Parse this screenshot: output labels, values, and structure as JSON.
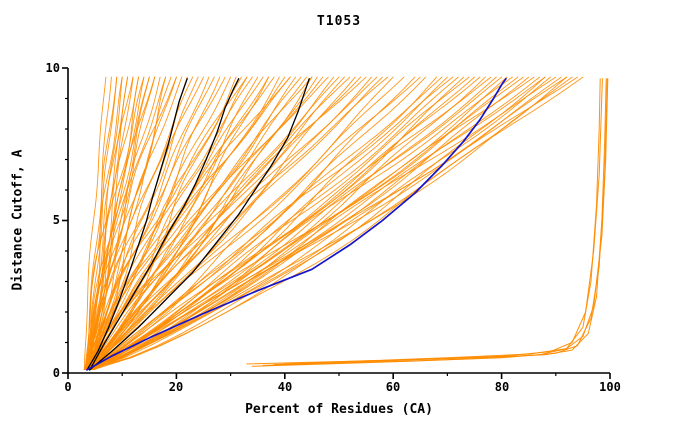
{
  "chart_data": {
    "type": "line",
    "title": "T1053",
    "xlabel": "Percent of Residues (CA)",
    "ylabel": "Distance Cutoff, A",
    "xlim": [
      0,
      100
    ],
    "ylim": [
      0,
      10
    ],
    "xticks": [
      0,
      20,
      40,
      60,
      80,
      100
    ],
    "yticks": [
      0,
      5,
      10
    ],
    "grid": false,
    "legend": "none",
    "colors": {
      "ensemble": "#FF8C00",
      "highlight": "#1414CC",
      "black": "#000000",
      "axis": "#000000",
      "background": "#FFFFFF"
    },
    "orange_ensemble": {
      "origin_x_min": 3,
      "origin_x_max": 5,
      "y_start": 0.12,
      "y_top": 9.7,
      "params": [
        [
          7,
          1.3,
          0.3,
          0.0
        ],
        [
          8,
          1.1,
          0.4,
          1.0
        ],
        [
          9,
          1.4,
          0.5,
          2.0
        ],
        [
          10,
          1.0,
          0.5,
          3.0
        ],
        [
          10,
          1.5,
          0.6,
          4.0
        ],
        [
          11,
          1.2,
          0.5,
          5.0
        ],
        [
          12,
          1.35,
          0.7,
          0.5
        ],
        [
          12,
          0.95,
          0.5,
          1.5
        ],
        [
          13,
          1.25,
          0.8,
          2.5
        ],
        [
          14,
          1.1,
          0.6,
          3.5
        ],
        [
          14,
          1.5,
          0.9,
          4.5
        ],
        [
          15,
          1.2,
          0.7,
          5.5
        ],
        [
          16,
          1.05,
          0.8,
          0.2
        ],
        [
          16,
          1.4,
          0.6,
          1.2
        ],
        [
          17,
          1.15,
          0.9,
          2.2
        ],
        [
          18,
          1.3,
          0.7,
          3.2
        ],
        [
          18,
          0.9,
          0.8,
          4.2
        ],
        [
          19,
          1.2,
          1.0,
          5.2
        ],
        [
          20,
          1.1,
          0.8,
          0.8
        ],
        [
          20,
          1.45,
          0.9,
          1.8
        ],
        [
          21,
          1.25,
          0.7,
          2.8
        ],
        [
          22,
          1.0,
          1.0,
          3.8
        ],
        [
          23,
          1.3,
          0.8,
          4.8
        ],
        [
          24,
          1.15,
          0.9,
          5.8
        ],
        [
          25,
          1.2,
          1.0,
          0.4
        ],
        [
          26,
          1.05,
          0.8,
          1.4
        ],
        [
          9,
          1.2,
          0.4,
          2.4
        ],
        [
          11,
          1.4,
          0.5,
          3.4
        ],
        [
          13,
          1.0,
          0.6,
          4.4
        ],
        [
          15,
          1.35,
          0.7,
          5.4
        ],
        [
          27,
          1.1,
          1.0,
          0.0
        ],
        [
          28,
          0.95,
          1.1,
          0.7
        ],
        [
          29,
          1.2,
          0.9,
          1.4
        ],
        [
          30,
          1.05,
          1.0,
          2.1
        ],
        [
          31,
          0.9,
          1.2,
          2.8
        ],
        [
          32,
          1.15,
          1.0,
          3.5
        ],
        [
          33,
          1.0,
          1.1,
          4.2
        ],
        [
          34,
          1.2,
          0.9,
          4.9
        ],
        [
          35,
          0.95,
          1.2,
          5.6
        ],
        [
          36,
          1.1,
          1.0,
          0.3
        ],
        [
          37,
          1.0,
          1.1,
          1.0
        ],
        [
          38,
          1.15,
          0.9,
          1.7
        ],
        [
          39,
          0.9,
          1.2,
          2.4
        ],
        [
          40,
          1.05,
          1.0,
          3.1
        ],
        [
          41,
          1.2,
          1.1,
          3.8
        ],
        [
          42,
          0.95,
          1.0,
          4.5
        ],
        [
          43,
          1.1,
          1.2,
          5.2
        ],
        [
          44,
          1.0,
          0.9,
          5.9
        ],
        [
          45,
          1.15,
          1.0,
          0.6
        ],
        [
          46,
          0.9,
          1.1,
          1.3
        ],
        [
          47,
          1.05,
          1.2,
          2.0
        ],
        [
          48,
          1.2,
          1.0,
          2.7
        ],
        [
          49,
          0.95,
          1.1,
          3.4
        ],
        [
          50,
          1.1,
          0.9,
          4.1
        ],
        [
          51,
          1.0,
          1.2,
          4.8
        ],
        [
          52,
          1.15,
          1.0,
          5.5
        ],
        [
          53,
          0.9,
          1.1,
          0.2
        ],
        [
          54,
          1.05,
          1.0,
          0.9
        ],
        [
          55,
          1.2,
          1.2,
          1.6
        ],
        [
          56,
          0.95,
          1.0,
          2.3
        ],
        [
          57,
          1.1,
          1.1,
          3.0
        ],
        [
          58,
          1.0,
          1.0,
          3.7
        ],
        [
          59,
          1.15,
          1.2,
          4.4
        ],
        [
          60,
          0.9,
          1.0,
          5.1
        ],
        [
          33,
          1.25,
          1.0,
          0.5
        ],
        [
          37,
          0.85,
          1.2,
          1.2
        ],
        [
          41,
          1.3,
          0.9,
          1.9
        ],
        [
          45,
          0.85,
          1.1,
          2.6
        ],
        [
          62,
          0.95,
          1.2,
          0.0
        ],
        [
          64,
          0.85,
          1.3,
          0.6
        ],
        [
          65,
          1.0,
          1.1,
          1.2
        ],
        [
          66,
          0.9,
          1.2,
          1.8
        ],
        [
          68,
          0.8,
          1.3,
          2.4
        ],
        [
          69,
          0.95,
          1.1,
          3.0
        ],
        [
          70,
          0.85,
          1.2,
          3.6
        ],
        [
          71,
          1.0,
          1.3,
          4.2
        ],
        [
          72,
          0.9,
          1.1,
          4.8
        ],
        [
          73,
          0.8,
          1.2,
          5.4
        ],
        [
          74,
          0.95,
          1.3,
          6.0
        ],
        [
          75,
          0.85,
          1.1,
          0.3
        ],
        [
          76,
          0.9,
          1.2,
          0.9
        ],
        [
          77,
          0.8,
          1.3,
          1.5
        ],
        [
          78,
          0.95,
          1.1,
          2.1
        ],
        [
          79,
          0.85,
          1.2,
          2.7
        ],
        [
          80,
          0.9,
          1.3,
          3.3
        ],
        [
          81,
          0.8,
          1.1,
          3.9
        ],
        [
          82,
          0.95,
          1.2,
          4.5
        ],
        [
          83,
          0.85,
          1.3,
          5.1
        ],
        [
          84,
          0.9,
          1.1,
          5.7
        ],
        [
          85,
          0.8,
          1.2,
          0.1
        ],
        [
          86,
          0.95,
          1.3,
          0.8
        ],
        [
          87,
          0.85,
          1.1,
          1.5
        ],
        [
          88,
          0.9,
          1.2,
          2.2
        ],
        [
          89,
          0.8,
          1.3,
          2.9
        ],
        [
          90,
          0.95,
          1.1,
          3.6
        ],
        [
          91,
          0.85,
          1.2,
          4.3
        ],
        [
          92,
          0.9,
          1.3,
          5.0
        ],
        [
          93,
          0.8,
          1.1,
          5.7
        ],
        [
          94,
          0.9,
          1.2,
          0.4
        ],
        [
          95,
          0.85,
          1.1,
          1.1
        ],
        [
          88,
          0.75,
          1.3,
          1.8
        ],
        [
          92,
          0.75,
          1.2,
          2.5
        ]
      ]
    },
    "outlier_curves": [
      [
        [
          33,
          0.3
        ],
        [
          45,
          0.35
        ],
        [
          60,
          0.42
        ],
        [
          75,
          0.5
        ],
        [
          88,
          0.6
        ],
        [
          93,
          0.75
        ],
        [
          96,
          1.3
        ],
        [
          97.5,
          2.5
        ],
        [
          98.5,
          5.0
        ],
        [
          99,
          7.5
        ],
        [
          99.3,
          9.65
        ]
      ],
      [
        [
          36,
          0.25
        ],
        [
          50,
          0.32
        ],
        [
          65,
          0.4
        ],
        [
          80,
          0.5
        ],
        [
          90,
          0.65
        ],
        [
          94,
          0.9
        ],
        [
          96.5,
          1.8
        ],
        [
          98,
          3.5
        ],
        [
          99,
          6.5
        ],
        [
          99.5,
          9.65
        ]
      ],
      [
        [
          40,
          0.3
        ],
        [
          55,
          0.4
        ],
        [
          70,
          0.5
        ],
        [
          85,
          0.62
        ],
        [
          92,
          0.8
        ],
        [
          95,
          1.2
        ],
        [
          97,
          2.2
        ],
        [
          98.5,
          4.5
        ],
        [
          99.2,
          7.0
        ],
        [
          99.6,
          9.65
        ]
      ],
      [
        [
          34,
          0.22
        ],
        [
          48,
          0.3
        ],
        [
          62,
          0.38
        ],
        [
          76,
          0.48
        ],
        [
          87,
          0.6
        ],
        [
          92,
          0.8
        ],
        [
          95,
          1.5
        ],
        [
          96.5,
          3.0
        ],
        [
          97.5,
          5.5
        ],
        [
          98,
          8.0
        ],
        [
          98.2,
          9.65
        ]
      ],
      [
        [
          38,
          0.28
        ],
        [
          52,
          0.35
        ],
        [
          66,
          0.45
        ],
        [
          80,
          0.55
        ],
        [
          89,
          0.7
        ],
        [
          93,
          1.0
        ],
        [
          95.5,
          2.0
        ],
        [
          97,
          4.0
        ],
        [
          98,
          6.5
        ],
        [
          98.6,
          9.65
        ]
      ]
    ],
    "black_curves": [
      [
        [
          3.5,
          0.1
        ],
        [
          5.5,
          0.7
        ],
        [
          7.5,
          1.5
        ],
        [
          9.5,
          2.4
        ],
        [
          11.5,
          3.4
        ],
        [
          13,
          4.2
        ],
        [
          14.5,
          5.0
        ],
        [
          15.5,
          5.7
        ],
        [
          17,
          6.6
        ],
        [
          18.5,
          7.5
        ],
        [
          19.5,
          8.2
        ],
        [
          20.5,
          8.9
        ],
        [
          22,
          9.65
        ]
      ],
      [
        [
          4,
          0.1
        ],
        [
          6.5,
          0.9
        ],
        [
          9.5,
          1.8
        ],
        [
          12.5,
          2.7
        ],
        [
          15.5,
          3.6
        ],
        [
          18.5,
          4.6
        ],
        [
          21.5,
          5.5
        ],
        [
          23.5,
          6.2
        ],
        [
          25.5,
          7.0
        ],
        [
          27.5,
          7.9
        ],
        [
          29,
          8.7
        ],
        [
          30.5,
          9.3
        ],
        [
          31.5,
          9.65
        ]
      ],
      [
        [
          4,
          0.1
        ],
        [
          8,
          0.7
        ],
        [
          13,
          1.5
        ],
        [
          18,
          2.4
        ],
        [
          23,
          3.3
        ],
        [
          27.5,
          4.3
        ],
        [
          31.5,
          5.2
        ],
        [
          34.5,
          6.0
        ],
        [
          37.5,
          6.8
        ],
        [
          40.5,
          7.7
        ],
        [
          42.5,
          8.6
        ],
        [
          44.5,
          9.65
        ]
      ]
    ],
    "blue_curve": [
      [
        3.5,
        0.1
      ],
      [
        8,
        0.55
      ],
      [
        15,
        1.15
      ],
      [
        25,
        1.95
      ],
      [
        35,
        2.7
      ],
      [
        45,
        3.4
      ],
      [
        52,
        4.2
      ],
      [
        58,
        5.0
      ],
      [
        64,
        5.9
      ],
      [
        69,
        6.8
      ],
      [
        73,
        7.6
      ],
      [
        76,
        8.3
      ],
      [
        78.5,
        9.0
      ],
      [
        80,
        9.45
      ],
      [
        80.8,
        9.65
      ]
    ]
  }
}
